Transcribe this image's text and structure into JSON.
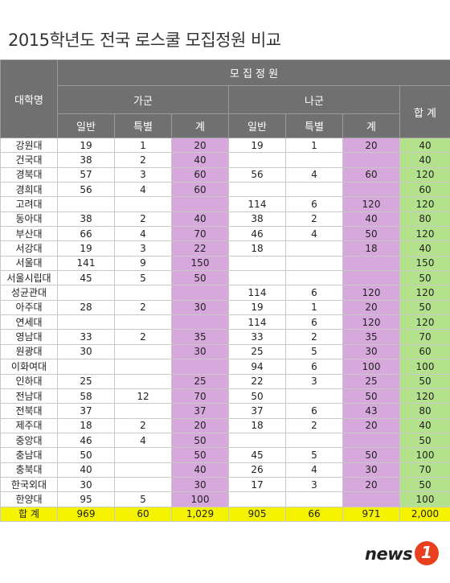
{
  "title": "2015학년도 전국 로스쿨 모집정원 비교",
  "header": {
    "university": "대학명",
    "quota": "모 집 정 원",
    "ga_group": "가군",
    "na_group": "나군",
    "total": "합 계",
    "general": "일반",
    "special": "특별",
    "subtotal": "계"
  },
  "rows": [
    {
      "name": "강원대",
      "ga": [
        "19",
        "1",
        "20"
      ],
      "na": [
        "19",
        "1",
        "20"
      ],
      "total": "40"
    },
    {
      "name": "건국대",
      "ga": [
        "38",
        "2",
        "40"
      ],
      "na": [
        "",
        "",
        ""
      ],
      "total": "40"
    },
    {
      "name": "경북대",
      "ga": [
        "57",
        "3",
        "60"
      ],
      "na": [
        "56",
        "4",
        "60"
      ],
      "total": "120"
    },
    {
      "name": "경희대",
      "ga": [
        "56",
        "4",
        "60"
      ],
      "na": [
        "",
        "",
        ""
      ],
      "total": "60"
    },
    {
      "name": "고려대",
      "ga": [
        "",
        "",
        ""
      ],
      "na": [
        "114",
        "6",
        "120"
      ],
      "total": "120"
    },
    {
      "name": "동아대",
      "ga": [
        "38",
        "2",
        "40"
      ],
      "na": [
        "38",
        "2",
        "40"
      ],
      "total": "80"
    },
    {
      "name": "부산대",
      "ga": [
        "66",
        "4",
        "70"
      ],
      "na": [
        "46",
        "4",
        "50"
      ],
      "total": "120"
    },
    {
      "name": "서강대",
      "ga": [
        "19",
        "3",
        "22"
      ],
      "na": [
        "18",
        "",
        "18"
      ],
      "total": "40"
    },
    {
      "name": "서울대",
      "ga": [
        "141",
        "9",
        "150"
      ],
      "na": [
        "",
        "",
        ""
      ],
      "total": "150"
    },
    {
      "name": "서울시립대",
      "ga": [
        "45",
        "5",
        "50"
      ],
      "na": [
        "",
        "",
        ""
      ],
      "total": "50"
    },
    {
      "name": "성균관대",
      "ga": [
        "",
        "",
        ""
      ],
      "na": [
        "114",
        "6",
        "120"
      ],
      "total": "120"
    },
    {
      "name": "아주대",
      "ga": [
        "28",
        "2",
        "30"
      ],
      "na": [
        "19",
        "1",
        "20"
      ],
      "total": "50"
    },
    {
      "name": "연세대",
      "ga": [
        "",
        "",
        ""
      ],
      "na": [
        "114",
        "6",
        "120"
      ],
      "total": "120"
    },
    {
      "name": "영남대",
      "ga": [
        "33",
        "2",
        "35"
      ],
      "na": [
        "33",
        "2",
        "35"
      ],
      "total": "70"
    },
    {
      "name": "원광대",
      "ga": [
        "30",
        "",
        "30"
      ],
      "na": [
        "25",
        "5",
        "30"
      ],
      "total": "60"
    },
    {
      "name": "이화여대",
      "ga": [
        "",
        "",
        ""
      ],
      "na": [
        "94",
        "6",
        "100"
      ],
      "total": "100"
    },
    {
      "name": "인하대",
      "ga": [
        "25",
        "",
        "25"
      ],
      "na": [
        "22",
        "3",
        "25"
      ],
      "total": "50"
    },
    {
      "name": "전남대",
      "ga": [
        "58",
        "12",
        "70"
      ],
      "na": [
        "50",
        "",
        "50"
      ],
      "total": "120"
    },
    {
      "name": "전북대",
      "ga": [
        "37",
        "",
        "37"
      ],
      "na": [
        "37",
        "6",
        "43"
      ],
      "total": "80"
    },
    {
      "name": "제주대",
      "ga": [
        "18",
        "2",
        "20"
      ],
      "na": [
        "18",
        "2",
        "20"
      ],
      "total": "40"
    },
    {
      "name": "중앙대",
      "ga": [
        "46",
        "4",
        "50"
      ],
      "na": [
        "",
        "",
        ""
      ],
      "total": "50"
    },
    {
      "name": "충남대",
      "ga": [
        "50",
        "",
        "50"
      ],
      "na": [
        "45",
        "5",
        "50"
      ],
      "total": "100"
    },
    {
      "name": "충북대",
      "ga": [
        "40",
        "",
        "40"
      ],
      "na": [
        "26",
        "4",
        "30"
      ],
      "total": "70"
    },
    {
      "name": "한국외대",
      "ga": [
        "30",
        "",
        "30"
      ],
      "na": [
        "17",
        "3",
        "20"
      ],
      "total": "50"
    },
    {
      "name": "한양대",
      "ga": [
        "95",
        "5",
        "100"
      ],
      "na": [
        "",
        "",
        ""
      ],
      "total": "100"
    }
  ],
  "sum": {
    "name": "합 계",
    "ga": [
      "969",
      "60",
      "1,029"
    ],
    "na": [
      "905",
      "66",
      "971"
    ],
    "total": "2,000"
  },
  "logo": {
    "text": "news",
    "badge": "1"
  },
  "colors": {
    "header_bg": "#707070",
    "subtotal_bg": "#d6a8dc",
    "total_bg": "#b4e28c",
    "sum_bg": "#f6f300",
    "logo_badge": "#e8401f"
  }
}
